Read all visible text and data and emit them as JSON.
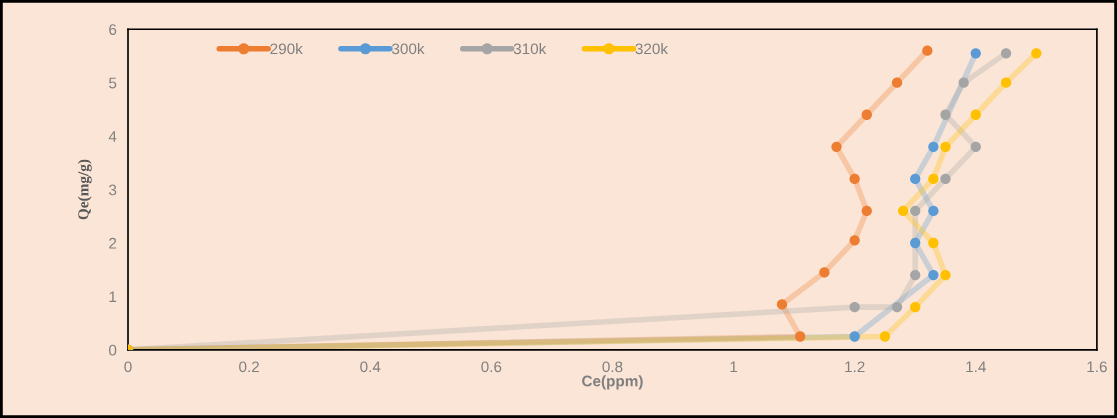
{
  "chart_data": {
    "type": "line",
    "xlabel": "Ce(ppm)",
    "ylabel": "Qe(mg/g)",
    "xlim": [
      0,
      1.6
    ],
    "xticks": [
      0,
      0.2,
      0.4,
      0.6,
      0.8,
      1,
      1.2,
      1.4,
      1.6
    ],
    "ylim": [
      0,
      6
    ],
    "yticks": [
      0,
      1,
      2,
      3,
      4,
      5,
      6
    ],
    "grid": false,
    "legend": "top left",
    "marker": "circle",
    "line_style": "solid",
    "series": [
      {
        "name": "290k",
        "color": "#ed7d31",
        "x": [
          0,
          1.11,
          1.08,
          1.15,
          1.2,
          1.22,
          1.2,
          1.17,
          1.22,
          1.27,
          1.32
        ],
        "values": [
          0,
          0.25,
          0.85,
          1.45,
          2.05,
          2.6,
          3.2,
          3.8,
          4.4,
          5.0,
          5.6
        ]
      },
      {
        "name": "300k",
        "color": "#5b9bd5",
        "x": [
          0,
          1.2,
          1.33,
          1.3,
          1.33,
          1.3,
          1.33,
          1.4
        ],
        "values": [
          0,
          0.25,
          1.4,
          2.0,
          2.6,
          3.2,
          3.8,
          5.55
        ]
      },
      {
        "name": "310k",
        "color": "#a5a5a5",
        "x": [
          0,
          1.2,
          1.27,
          1.3,
          1.3,
          1.35,
          1.4,
          1.35,
          1.38,
          1.45
        ],
        "values": [
          0,
          0.8,
          0.8,
          1.4,
          2.6,
          3.2,
          3.8,
          4.4,
          5.0,
          5.55
        ]
      },
      {
        "name": "320k",
        "color": "#ffc000",
        "x": [
          0,
          1.25,
          1.3,
          1.35,
          1.33,
          1.28,
          1.33,
          1.35,
          1.4,
          1.45,
          1.5
        ],
        "values": [
          0,
          0.25,
          0.8,
          1.4,
          2.0,
          2.6,
          3.2,
          3.8,
          4.4,
          5.0,
          5.55
        ]
      }
    ]
  }
}
